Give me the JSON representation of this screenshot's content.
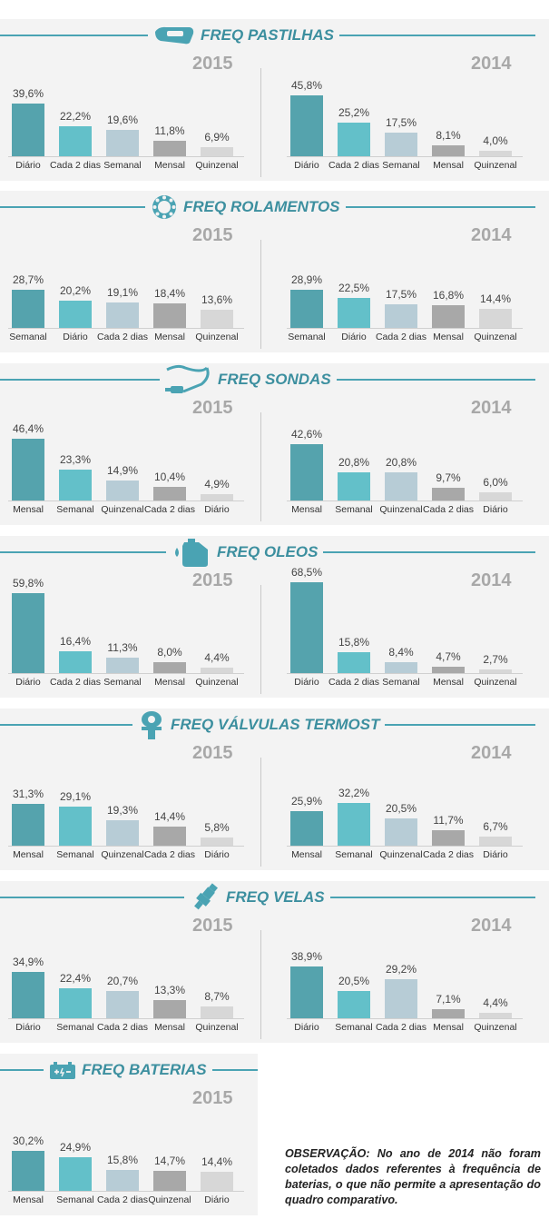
{
  "colors": [
    "#55a3ad",
    "#63c0c9",
    "#b7ccd6",
    "#a8a8a8",
    "#d7d7d7"
  ],
  "note": "OBSERVAÇÃO: No ano de 2014 não foram coletados dados referentes à frequência de baterias, o que não permite a apresentação do quadro comparativo.",
  "chart_data": [
    {
      "type": "bar",
      "title": "FREQ PASTILHAS",
      "icon": "brake-pad-icon",
      "panels": [
        {
          "year": "2015",
          "categories": [
            "Diário",
            "Cada 2 dias",
            "Semanal",
            "Mensal",
            "Quinzenal"
          ],
          "values": [
            39.6,
            22.2,
            19.6,
            11.8,
            6.9
          ],
          "labels": [
            "39,6%",
            "22,2%",
            "19,6%",
            "11,8%",
            "6,9%"
          ]
        },
        {
          "year": "2014",
          "categories": [
            "Diário",
            "Cada 2 dias",
            "Semanal",
            "Mensal",
            "Quinzenal"
          ],
          "values": [
            45.8,
            25.2,
            17.5,
            8.1,
            4.0
          ],
          "labels": [
            "45,8%",
            "25,2%",
            "17,5%",
            "8,1%",
            "4,0%"
          ]
        }
      ]
    },
    {
      "type": "bar",
      "title": "FREQ ROLAMENTOS",
      "icon": "bearing-icon",
      "panels": [
        {
          "year": "2015",
          "categories": [
            "Semanal",
            "Diário",
            "Cada 2 dias",
            "Mensal",
            "Quinzenal"
          ],
          "values": [
            28.7,
            20.2,
            19.1,
            18.4,
            13.6
          ],
          "labels": [
            "28,7%",
            "20,2%",
            "19,1%",
            "18,4%",
            "13,6%"
          ]
        },
        {
          "year": "2014",
          "categories": [
            "Semanal",
            "Diário",
            "Cada 2 dias",
            "Mensal",
            "Quinzenal"
          ],
          "values": [
            28.9,
            22.5,
            17.5,
            16.8,
            14.4
          ],
          "labels": [
            "28,9%",
            "22,5%",
            "17,5%",
            "16,8%",
            "14,4%"
          ]
        }
      ]
    },
    {
      "type": "bar",
      "title": "FREQ SONDAS",
      "icon": "sensor-icon",
      "panels": [
        {
          "year": "2015",
          "categories": [
            "Mensal",
            "Semanal",
            "Quinzenal",
            "Cada 2 dias",
            "Diário"
          ],
          "values": [
            46.4,
            23.3,
            14.9,
            10.4,
            4.9
          ],
          "labels": [
            "46,4%",
            "23,3%",
            "14,9%",
            "10,4%",
            "4,9%"
          ]
        },
        {
          "year": "2014",
          "categories": [
            "Mensal",
            "Semanal",
            "Quinzenal",
            "Cada 2 dias",
            "Diário"
          ],
          "values": [
            42.6,
            20.8,
            20.8,
            9.7,
            6.0
          ],
          "labels": [
            "42,6%",
            "20,8%",
            "20,8%",
            "9,7%",
            "6,0%"
          ]
        }
      ]
    },
    {
      "type": "bar",
      "title": "FREQ OLEOS",
      "icon": "oil-can-icon",
      "panels": [
        {
          "year": "2015",
          "categories": [
            "Diário",
            "Cada 2 dias",
            "Semanal",
            "Mensal",
            "Quinzenal"
          ],
          "values": [
            59.8,
            16.4,
            11.3,
            8.0,
            4.4
          ],
          "labels": [
            "59,8%",
            "16,4%",
            "11,3%",
            "8,0%",
            "4,4%"
          ]
        },
        {
          "year": "2014",
          "categories": [
            "Diário",
            "Cada 2 dias",
            "Semanal",
            "Mensal",
            "Quinzenal"
          ],
          "values": [
            68.5,
            15.8,
            8.4,
            4.7,
            2.7
          ],
          "labels": [
            "68,5%",
            "15,8%",
            "8,4%",
            "4,7%",
            "2,7%"
          ]
        }
      ]
    },
    {
      "type": "bar",
      "title": "FREQ VÁLVULAS TERMOST",
      "icon": "thermostat-valve-icon",
      "panels": [
        {
          "year": "2015",
          "categories": [
            "Mensal",
            "Semanal",
            "Quinzenal",
            "Cada 2 dias",
            "Diário"
          ],
          "values": [
            31.3,
            29.1,
            19.3,
            14.4,
            5.8
          ],
          "labels": [
            "31,3%",
            "29,1%",
            "19,3%",
            "14,4%",
            "5,8%"
          ]
        },
        {
          "year": "2014",
          "categories": [
            "Mensal",
            "Semanal",
            "Quinzenal",
            "Cada 2 dias",
            "Diário"
          ],
          "values": [
            25.9,
            32.2,
            20.5,
            11.7,
            6.7
          ],
          "labels": [
            "25,9%",
            "32,2%",
            "20,5%",
            "11,7%",
            "6,7%"
          ]
        }
      ]
    },
    {
      "type": "bar",
      "title": "FREQ VELAS",
      "icon": "spark-plug-icon",
      "panels": [
        {
          "year": "2015",
          "categories": [
            "Diário",
            "Semanal",
            "Cada 2 dias",
            "Mensal",
            "Quinzenal"
          ],
          "values": [
            34.9,
            22.4,
            20.7,
            13.3,
            8.7
          ],
          "labels": [
            "34,9%",
            "22,4%",
            "20,7%",
            "13,3%",
            "8,7%"
          ]
        },
        {
          "year": "2014",
          "categories": [
            "Diário",
            "Semanal",
            "Cada 2 dias",
            "Mensal",
            "Quinzenal"
          ],
          "values": [
            38.9,
            20.5,
            29.2,
            7.1,
            4.4
          ],
          "labels": [
            "38,9%",
            "20,5%",
            "29,2%",
            "7,1%",
            "4,4%"
          ]
        }
      ]
    },
    {
      "type": "bar",
      "title": "FREQ BATERIAS",
      "icon": "battery-icon",
      "panels": [
        {
          "year": "2015",
          "categories": [
            "Mensal",
            "Semanal",
            "Cada 2 dias",
            "Quinzenal",
            "Diário"
          ],
          "values": [
            30.2,
            24.9,
            15.8,
            14.7,
            14.4
          ],
          "labels": [
            "30,2%",
            "24,9%",
            "15,8%",
            "14,7%",
            "14,4%"
          ]
        }
      ]
    }
  ]
}
